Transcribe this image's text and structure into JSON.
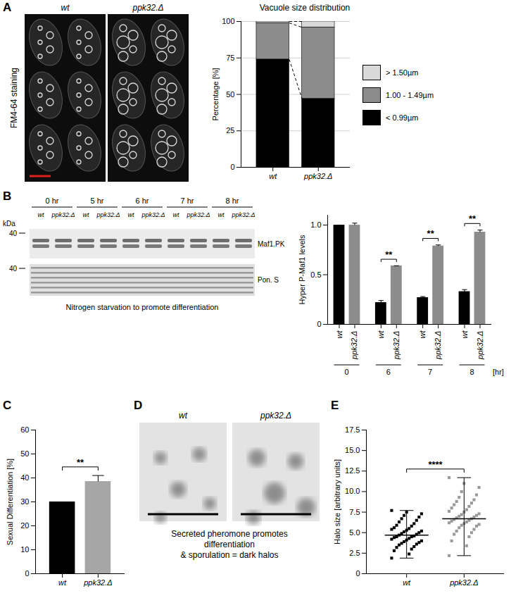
{
  "chart_data": [
    {
      "panel": "A",
      "type": "bar",
      "stacked": true,
      "title": "Vacuole size distribution",
      "y_label": "Percentage [%]",
      "categories": [
        "wt",
        "ppk32.Δ"
      ],
      "series": [
        {
          "name": "< 0.99µm",
          "color": "#000000",
          "values": [
            74,
            47
          ]
        },
        {
          "name": "1.00 - 1.49µm",
          "color": "#8c8c8c",
          "values": [
            25,
            49
          ]
        },
        {
          "name": "> 1.50µm",
          "color": "#d9d9d9",
          "values": [
            1,
            4
          ]
        }
      ],
      "ylim": [
        0,
        100
      ],
      "yticks": [
        0,
        25,
        50,
        75,
        100
      ],
      "legend": "right"
    },
    {
      "panel": "B",
      "type": "bar",
      "y_label": "Hyper P-Maf1 levels",
      "categories": [
        "wt",
        "ppk32.Δ",
        "wt",
        "ppk32.Δ",
        "wt",
        "ppk32.Δ",
        "wt",
        "ppk32.Δ"
      ],
      "groups": [
        "0",
        "6",
        "7",
        "8"
      ],
      "group_label": "[hr]",
      "values": [
        1.0,
        1.0,
        0.22,
        0.59,
        0.27,
        0.79,
        0.33,
        0.93
      ],
      "errors": [
        0,
        0.02,
        0.02,
        0,
        0.01,
        0.01,
        0.02,
        0.02
      ],
      "colors": [
        "#000000",
        "#8c8c8c",
        "#000000",
        "#8c8c8c",
        "#000000",
        "#8c8c8c",
        "#000000",
        "#8c8c8c"
      ],
      "ylim": [
        0,
        1.1
      ],
      "yticks": [
        0,
        0.5,
        {
          "value": 1,
          "label": "1.0"
        }
      ],
      "significance": [
        {
          "between": [
            2,
            3
          ],
          "label": "**"
        },
        {
          "between": [
            4,
            5
          ],
          "label": "**"
        },
        {
          "between": [
            6,
            7
          ],
          "label": "**"
        }
      ]
    },
    {
      "panel": "C",
      "type": "bar",
      "y_label": "Sexual Differentiation [%]",
      "categories": [
        "wt",
        "ppk32.Δ"
      ],
      "values": [
        30,
        38.5
      ],
      "errors": [
        0,
        2.5
      ],
      "colors": [
        "#000000",
        "#a6a6a6"
      ],
      "ylim": [
        0,
        60
      ],
      "yticks": [
        0,
        10,
        20,
        30,
        40,
        50,
        60
      ],
      "significance": [
        {
          "between": [
            0,
            1
          ],
          "label": "**"
        }
      ]
    },
    {
      "panel": "E",
      "type": "scatter",
      "y_label": "Halo size [arbitrary units]",
      "categories": [
        "wt",
        "ppk32.Δ"
      ],
      "colors": [
        "#000000",
        "#999999"
      ],
      "marker": "square",
      "points": [
        [
          1.9,
          2.4,
          2.8,
          3.0,
          3.2,
          3.3,
          3.5,
          3.6,
          3.7,
          3.8,
          3.9,
          4.0,
          4.1,
          4.2,
          4.3,
          4.4,
          4.5,
          4.5,
          4.6,
          4.7,
          4.8,
          4.9,
          5.0,
          5.1,
          5.2,
          5.3,
          5.4,
          5.5,
          5.6,
          5.8,
          5.9,
          6.1,
          6.3,
          6.5,
          6.7,
          6.9,
          7.1,
          7.3,
          7.5,
          7.7
        ],
        [
          2.2,
          3.4,
          4.0,
          4.5,
          4.8,
          5.0,
          5.2,
          5.4,
          5.6,
          5.8,
          5.9,
          6.0,
          6.1,
          6.2,
          6.3,
          6.4,
          6.5,
          6.6,
          6.7,
          6.8,
          6.9,
          7.0,
          7.1,
          7.2,
          7.3,
          7.5,
          7.6,
          7.8,
          8.0,
          8.2,
          8.4,
          8.6,
          8.8,
          9.0,
          9.3,
          9.6,
          10.0,
          10.5,
          11.0,
          11.7
        ]
      ],
      "means": [
        4.7,
        6.7
      ],
      "error_low": [
        1.9,
        2.2
      ],
      "error_high": [
        7.7,
        11.7
      ],
      "ylim": [
        0,
        17.5
      ],
      "yticks": [
        0,
        2.5,
        {
          "value": 5,
          "label": "5.0"
        },
        7.5,
        {
          "value": 10,
          "label": "10.0"
        },
        12.5,
        {
          "value": 15,
          "label": "15.0"
        },
        17.5
      ],
      "significance": [
        {
          "between": [
            0,
            1
          ],
          "label": "****"
        }
      ]
    }
  ],
  "images": [
    {
      "panel": "A",
      "labels": [
        "wt",
        "ppk32.Δ"
      ],
      "side_label": "FM4-64 staining"
    },
    {
      "panel": "B",
      "lane_groups": [
        "0 hr",
        "5 hr",
        "6 hr",
        "7 hr",
        "8 hr"
      ],
      "lane_labels": [
        "wt",
        "ppk32.Δ"
      ],
      "unit_label": "kDa",
      "marker_labels": [
        "40",
        "40"
      ],
      "band_labels": [
        "Maf1.PK",
        "Pon. S"
      ],
      "caption": "Nitrogen starvation to promote differentiation"
    },
    {
      "panel": "D",
      "labels": [
        "wt",
        "ppk32.Δ"
      ],
      "caption": [
        "Secreted pheromone promotes",
        "differentiation",
        "& sporulation = dark halos"
      ]
    }
  ]
}
